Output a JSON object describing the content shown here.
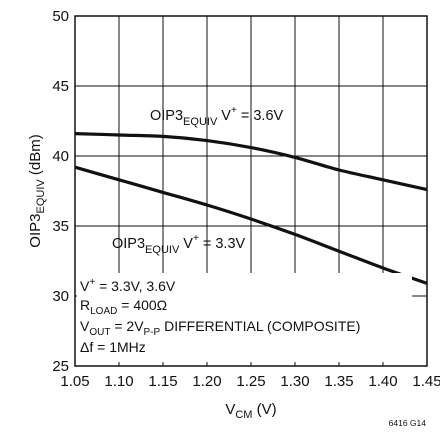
{
  "chart_data": {
    "type": "line",
    "title": "",
    "xlabel": {
      "main": "V",
      "sub": "CM",
      "suffix": " (V)"
    },
    "ylabel": {
      "prefix": "OIP3",
      "sub": "EQUIV",
      "suffix": " (dBm)"
    },
    "xlim": [
      1.05,
      1.45
    ],
    "ylim": [
      25,
      50
    ],
    "x_ticks": [
      "1.05",
      "1.10",
      "1.15",
      "1.20",
      "1.25",
      "1.30",
      "1.35",
      "1.40",
      "1.45"
    ],
    "y_ticks": [
      "25",
      "30",
      "35",
      "40",
      "45",
      "50"
    ],
    "grid": true,
    "series": [
      {
        "label_prefix": "OIP3",
        "label_sub": "EQUIV",
        "label_mid": " V",
        "label_sup": "+",
        "label_value": " = 3.6V",
        "x": [
          1.05,
          1.1,
          1.15,
          1.2,
          1.25,
          1.3,
          1.35,
          1.4,
          1.45
        ],
        "y": [
          41.6,
          41.5,
          41.4,
          41.1,
          40.6,
          39.9,
          39.0,
          38.3,
          37.6
        ]
      },
      {
        "label_prefix": "OIP3",
        "label_sub": "EQUIV",
        "label_mid": " V",
        "label_sup": "+",
        "label_value": " = 3.3V",
        "x": [
          1.05,
          1.1,
          1.15,
          1.2,
          1.25,
          1.3,
          1.35,
          1.4,
          1.45
        ],
        "y": [
          39.2,
          38.3,
          37.4,
          36.5,
          35.5,
          34.4,
          33.2,
          32.0,
          30.9
        ]
      }
    ],
    "conditions": {
      "line1_prefix": "V",
      "line1_sup": "+",
      "line1_value": " = 3.3V, 3.6V",
      "line2_prefix": "R",
      "line2_sub": "LOAD",
      "line2_value": " = 400Ω",
      "line3_prefix": "V",
      "line3_sub": "OUT",
      "line3_mid": " = 2V",
      "line3_sub2": "P-P",
      "line3_value": " DIFFERENTIAL (COMPOSITE)",
      "line4": "Δf = 1MHz"
    },
    "figure_code": "6416 G14"
  }
}
